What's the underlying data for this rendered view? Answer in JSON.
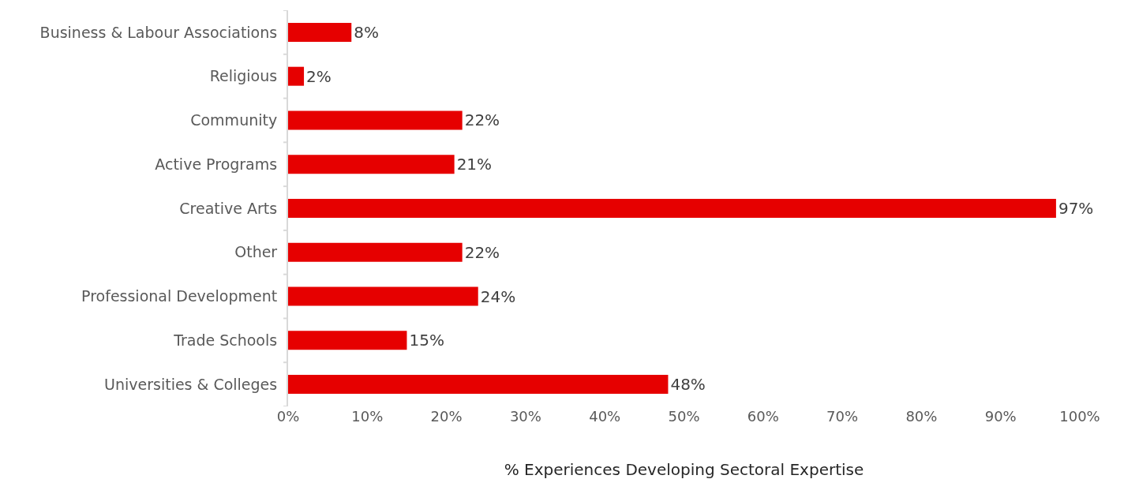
{
  "chart_data": {
    "type": "bar",
    "orientation": "horizontal",
    "xlabel": "% Experiences Developing Sectoral Expertise",
    "categories": [
      "Business & Labour Associations",
      "Religious",
      "Community",
      "Active Programs",
      "Creative Arts",
      "Other",
      "Professional Development",
      "Trade Schools",
      "Universities & Colleges"
    ],
    "values": [
      8,
      2,
      22,
      21,
      97,
      22,
      24,
      15,
      48
    ],
    "value_labels": [
      "8%",
      "2%",
      "22%",
      "21%",
      "97%",
      "22%",
      "24%",
      "15%",
      "48%"
    ],
    "color": "#e60000",
    "xlim": [
      0,
      100
    ],
    "xticks": [
      {
        "value": 0,
        "label": "0%"
      },
      {
        "value": 10,
        "label": "10%"
      },
      {
        "value": 20,
        "label": "20%"
      },
      {
        "value": 30,
        "label": "30%"
      },
      {
        "value": 40,
        "label": "40%"
      },
      {
        "value": 50,
        "label": "50%"
      },
      {
        "value": 60,
        "label": "60%"
      },
      {
        "value": 70,
        "label": "70%"
      },
      {
        "value": 80,
        "label": "80%"
      },
      {
        "value": 90,
        "label": "90%"
      },
      {
        "value": 100,
        "label": "100%"
      }
    ],
    "grid": false,
    "legend": false
  }
}
